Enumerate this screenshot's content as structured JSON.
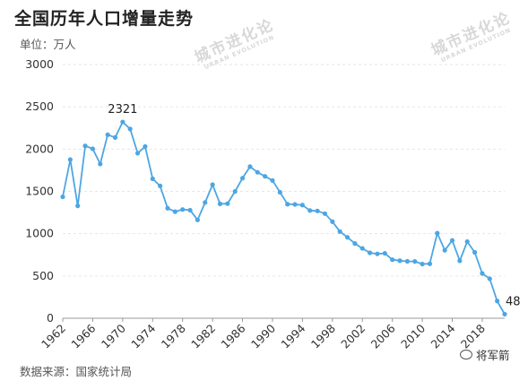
{
  "title": "全国历年人口增量走势",
  "unit_label": "单位：万人",
  "source_label": "数据来源：国家统计局",
  "watermarks": [
    {
      "main": "城市进化论",
      "sub": "URBAN EVOLUTION"
    },
    {
      "main": "城市进化论",
      "sub": "URBAN EVOLUTION"
    }
  ],
  "author": "将军箭",
  "colors": {
    "line": "#4da6e2",
    "point": "#4da6e2",
    "grid": "#e6e6e6",
    "axis": "#999999"
  },
  "chart_data": {
    "type": "line",
    "title": "全国历年人口增量走势",
    "ylabel": "单位：万人",
    "xlabel": "",
    "ylim": [
      0,
      3000
    ],
    "xlim": [
      1962,
      2021
    ],
    "yticks": [
      "0",
      "500",
      "1000",
      "1500",
      "2000",
      "2500",
      "3000"
    ],
    "xticks": [
      "1962",
      "1966",
      "1970",
      "1974",
      "1978",
      "1982",
      "1986",
      "1990",
      "1994",
      "1998",
      "2002",
      "2006",
      "2010",
      "2014",
      "2018"
    ],
    "grid": "horizontal dashed",
    "series": [
      {
        "x": [
          1962,
          1963,
          1964,
          1965,
          1966,
          1967,
          1968,
          1969,
          1970,
          1971,
          1972,
          1973,
          1974,
          1975,
          1976,
          1977,
          1978,
          1979,
          1980,
          1981,
          1982,
          1983,
          1984,
          1985,
          1986,
          1987,
          1988,
          1989,
          1990,
          1991,
          1992,
          1993,
          1994,
          1995,
          1996,
          1997,
          1998,
          1999,
          2000,
          2001,
          2002,
          2003,
          2004,
          2005,
          2006,
          2007,
          2008,
          2009,
          2010,
          2011,
          2012,
          2013,
          2014,
          2015,
          2016,
          2017,
          2018,
          2019,
          2020,
          2021
        ],
        "values": [
          1436,
          1876,
          1329,
          2038,
          2004,
          1824,
          2170,
          2137,
          2321,
          2238,
          1952,
          2030,
          1649,
          1565,
          1301,
          1260,
          1286,
          1278,
          1163,
          1369,
          1580,
          1353,
          1355,
          1500,
          1656,
          1793,
          1726,
          1678,
          1629,
          1490,
          1349,
          1346,
          1338,
          1274,
          1269,
          1237,
          1142,
          1025,
          957,
          884,
          826,
          774,
          761,
          768,
          692,
          681,
          673,
          672,
          641,
          644,
          1006,
          804,
          920,
          680,
          906,
          779,
          530,
          467,
          204,
          48
        ]
      }
    ],
    "annotations": [
      {
        "text": "2321",
        "x": 1970,
        "y": 2321
      },
      {
        "text": "48",
        "x": 2021,
        "y": 48
      }
    ]
  }
}
